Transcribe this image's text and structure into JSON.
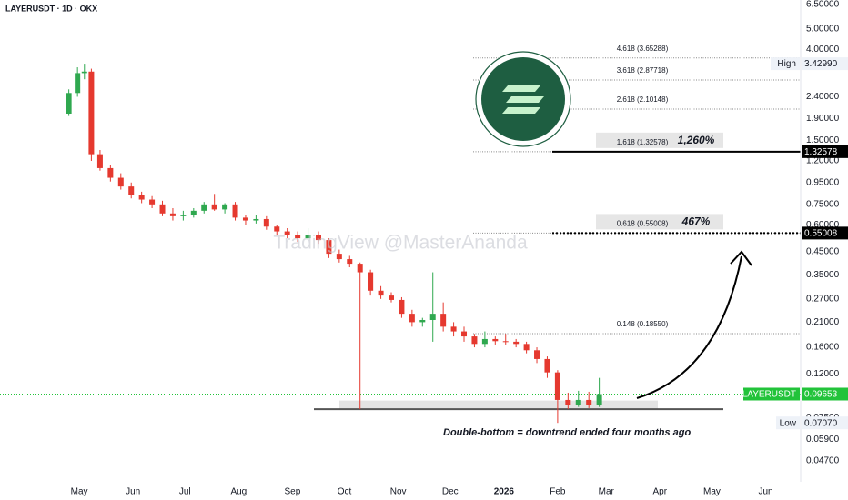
{
  "chart_data": {
    "type": "candlestick",
    "title": "LAYERUSDT · 1D · OKX",
    "watermark": "TradingView @MasterAnanda",
    "annotation": "Double-bottom = downtrend ended four months ago",
    "log_scale": true,
    "up_color": "#2fa84f",
    "down_color": "#e5392f",
    "xlim": [
      -45.7,
      416.2
    ],
    "xticks": [
      {
        "value": 0,
        "label": "May"
      },
      {
        "value": 31,
        "label": "Jun"
      },
      {
        "value": 61,
        "label": "Jul"
      },
      {
        "value": 92,
        "label": "Aug"
      },
      {
        "value": 123,
        "label": "Sep"
      },
      {
        "value": 153,
        "label": "Oct"
      },
      {
        "value": 184,
        "label": "Nov"
      },
      {
        "value": 214,
        "label": "Dec"
      },
      {
        "value": 245,
        "label": "2026"
      },
      {
        "value": 276,
        "label": "Feb"
      },
      {
        "value": 304,
        "label": "Mar"
      },
      {
        "value": 335,
        "label": "Apr"
      },
      {
        "value": 365,
        "label": "May"
      },
      {
        "value": 396,
        "label": "Jun"
      }
    ],
    "ylim": [
      0.0374,
      6.83
    ],
    "yticks": [
      {
        "value": 6.5,
        "label": "6.50000"
      },
      {
        "value": 5,
        "label": "5.00000"
      },
      {
        "value": 4,
        "label": "4.00000"
      },
      {
        "value": 2.4,
        "label": "2.40000"
      },
      {
        "value": 1.9,
        "label": "1.90000"
      },
      {
        "value": 1.5,
        "label": "1.50000"
      },
      {
        "value": 1.2,
        "label": "1.20000"
      },
      {
        "value": 0.95,
        "label": "0.95000"
      },
      {
        "value": 0.75,
        "label": "0.75000"
      },
      {
        "value": 0.6,
        "label": "0.60000"
      },
      {
        "value": 0.45,
        "label": "0.45000"
      },
      {
        "value": 0.35,
        "label": "0.35000"
      },
      {
        "value": 0.27,
        "label": "0.27000"
      },
      {
        "value": 0.21,
        "label": "0.21000"
      },
      {
        "value": 0.16,
        "label": "0.16000"
      },
      {
        "value": 0.12,
        "label": "0.12000"
      },
      {
        "value": 0.075,
        "label": "0.07500"
      },
      {
        "value": 0.059,
        "label": "0.05900"
      },
      {
        "value": 0.047,
        "label": "0.04700"
      }
    ],
    "x": [
      -6,
      -1,
      3,
      7,
      12,
      18,
      24,
      30,
      36,
      42,
      48,
      54,
      60,
      66,
      72,
      78,
      84,
      90,
      96,
      102,
      108,
      114,
      120,
      126,
      132,
      138,
      144,
      150,
      156,
      162,
      168,
      174,
      180,
      186,
      192,
      198,
      204,
      210,
      216,
      222,
      228,
      234,
      240,
      246,
      252,
      258,
      264,
      270,
      276,
      282,
      288,
      294,
      300
    ],
    "open": [
      2.0,
      2.5,
      3.1,
      3.15,
      1.29,
      1.11,
      1.0,
      0.91,
      0.83,
      0.79,
      0.75,
      0.68,
      0.66,
      0.67,
      0.7,
      0.75,
      0.71,
      0.75,
      0.65,
      0.63,
      0.64,
      0.59,
      0.56,
      0.54,
      0.52,
      0.54,
      0.51,
      0.44,
      0.415,
      0.395,
      0.36,
      0.295,
      0.28,
      0.267,
      0.23,
      0.21,
      0.215,
      0.23,
      0.2,
      0.19,
      0.18,
      0.166,
      0.175,
      0.171,
      0.17,
      0.166,
      0.155,
      0.141,
      0.122,
      0.0906,
      0.0862,
      0.0906,
      0.0862
    ],
    "high": [
      2.6,
      3.3,
      3.4299,
      3.25,
      1.35,
      1.15,
      1.05,
      0.95,
      0.86,
      0.82,
      0.78,
      0.72,
      0.7,
      0.72,
      0.77,
      0.84,
      0.76,
      0.77,
      0.67,
      0.67,
      0.66,
      0.6,
      0.58,
      0.56,
      0.58,
      0.56,
      0.52,
      0.46,
      0.43,
      0.4,
      0.37,
      0.31,
      0.29,
      0.275,
      0.24,
      0.22,
      0.36,
      0.26,
      0.21,
      0.2,
      0.185,
      0.19,
      0.18,
      0.185,
      0.175,
      0.17,
      0.16,
      0.145,
      0.125,
      0.098,
      0.1,
      0.099,
      0.115
    ],
    "low": [
      1.95,
      2.4,
      2.9,
      1.2,
      1.08,
      0.96,
      0.88,
      0.8,
      0.76,
      0.72,
      0.66,
      0.63,
      0.63,
      0.65,
      0.68,
      0.7,
      0.68,
      0.63,
      0.6,
      0.61,
      0.57,
      0.54,
      0.52,
      0.5,
      0.51,
      0.49,
      0.42,
      0.4,
      0.38,
      0.082,
      0.28,
      0.27,
      0.26,
      0.22,
      0.2,
      0.2,
      0.17,
      0.19,
      0.18,
      0.17,
      0.16,
      0.16,
      0.165,
      0.165,
      0.16,
      0.15,
      0.135,
      0.115,
      0.0707,
      0.082,
      0.084,
      0.083,
      0.084
    ],
    "close": [
      2.5,
      3.1,
      3.15,
      1.29,
      1.11,
      1.0,
      0.91,
      0.83,
      0.79,
      0.75,
      0.68,
      0.66,
      0.67,
      0.7,
      0.75,
      0.71,
      0.75,
      0.65,
      0.63,
      0.64,
      0.59,
      0.56,
      0.54,
      0.52,
      0.54,
      0.51,
      0.44,
      0.415,
      0.395,
      0.36,
      0.295,
      0.28,
      0.267,
      0.23,
      0.21,
      0.215,
      0.23,
      0.2,
      0.19,
      0.18,
      0.166,
      0.175,
      0.171,
      0.17,
      0.166,
      0.155,
      0.141,
      0.122,
      0.0906,
      0.0862,
      0.0906,
      0.0862,
      0.09653
    ],
    "fib_levels": [
      {
        "label": "4.618 (3.65288)",
        "value": 3.65288
      },
      {
        "label": "3.618 (2.87718)",
        "value": 2.87718
      },
      {
        "label": "2.618 (2.10148)",
        "value": 2.10148
      },
      {
        "label": "1.618 (1.32578)",
        "value": 1.32578,
        "gain": 1260,
        "gain_label": "1,260%",
        "style": "solid"
      },
      {
        "label": "0.618 (0.55008)",
        "value": 0.55008,
        "gain": 467,
        "gain_label": "467%",
        "style": "dashed"
      },
      {
        "label": "0.148 (0.18550)",
        "value": 0.1855
      }
    ],
    "support_level": 0.082,
    "support_zone_top": 0.09,
    "price_markers": [
      {
        "name": "High",
        "value": 3.4299,
        "label": "3.42990",
        "color": "#eef2f8",
        "text_color": "#131722"
      },
      {
        "value": 1.32578,
        "label": "1.32578",
        "color": "#000000",
        "text_color": "#ffffff"
      },
      {
        "value": 0.55008,
        "label": "0.55008",
        "color": "#000000",
        "text_color": "#ffffff"
      },
      {
        "name": "LAYERUSDT",
        "value": 0.09653,
        "label": "0.09653",
        "color": "#22c33a",
        "text_color": "#ffffff"
      },
      {
        "name": "Low",
        "value": 0.0707,
        "label": "0.07070",
        "color": "#eef2f8",
        "text_color": "#131722"
      }
    ]
  }
}
